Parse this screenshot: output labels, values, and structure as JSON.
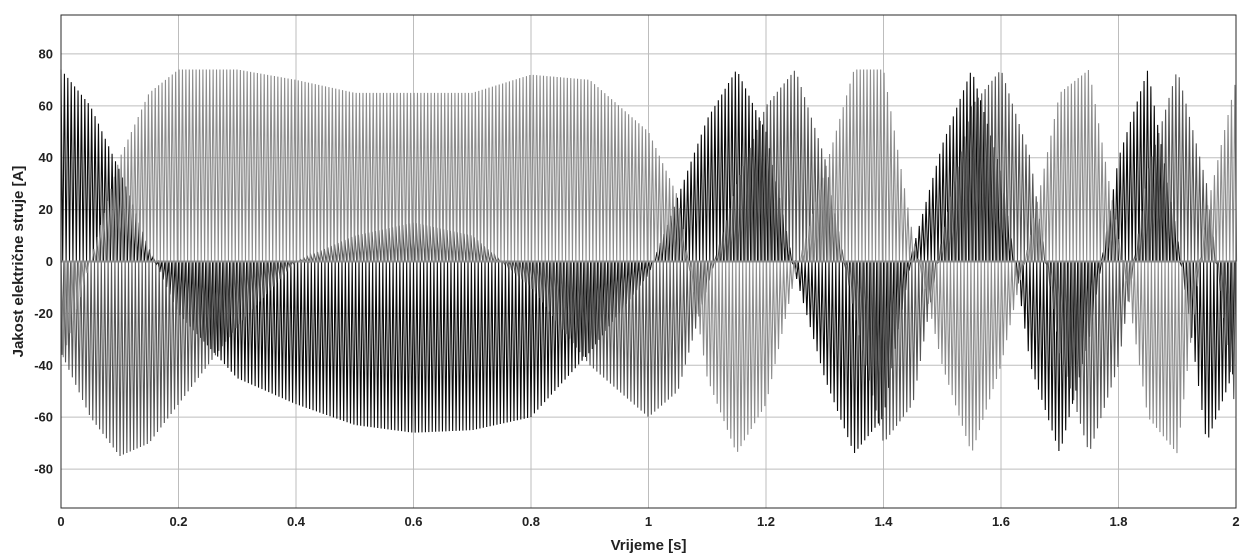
{
  "chart_data": {
    "type": "line",
    "title": "",
    "xlabel": "Vrijeme [s]",
    "ylabel": "Jakost električne struje [A]",
    "xlim": [
      0,
      2
    ],
    "ylim": [
      -95,
      95
    ],
    "x_ticks": [
      0,
      0.2,
      0.4,
      0.6,
      0.8,
      1,
      1.2,
      1.4,
      1.6,
      1.8,
      2
    ],
    "x_tick_labels": [
      "0",
      "0.2",
      "0.4",
      "0.6",
      "0.8",
      "1",
      "1.2",
      "1.4",
      "1.6",
      "1.8",
      "2"
    ],
    "y_ticks": [
      -80,
      -60,
      -40,
      -20,
      0,
      20,
      40,
      60,
      80
    ],
    "y_tick_labels": [
      "-80",
      "-60",
      "-40",
      "-20",
      "0",
      "20",
      "40",
      "60",
      "80"
    ],
    "grid": true,
    "legend": "none",
    "series": [
      {
        "color": "#0a0a0a",
        "x": [
          0,
          0.05,
          0.1,
          0.15,
          0.2,
          0.3,
          0.4,
          0.5,
          0.6,
          0.7,
          0.8,
          0.9,
          1.0,
          1.05,
          1.1,
          1.15,
          1.2,
          1.25,
          1.3,
          1.35,
          1.4,
          1.45,
          1.5,
          1.55,
          1.6,
          1.65,
          1.7,
          1.75,
          1.8,
          1.85,
          1.9,
          1.95,
          2.0
        ],
        "y": [
          74,
          60,
          35,
          5,
          -20,
          -45,
          -55,
          -63,
          -66,
          -65,
          -60,
          -35,
          -5,
          25,
          55,
          74,
          50,
          -5,
          -45,
          -74,
          -60,
          5,
          45,
          74,
          35,
          -40,
          -74,
          -30,
          40,
          74,
          10,
          -70,
          -40
        ]
      },
      {
        "color": "#555555",
        "x": [
          0,
          0.05,
          0.1,
          0.15,
          0.2,
          0.3,
          0.4,
          0.5,
          0.6,
          0.7,
          0.8,
          0.9,
          1.0,
          1.05,
          1.1,
          1.15,
          1.2,
          1.25,
          1.3,
          1.35,
          1.4,
          1.45,
          1.5,
          1.55,
          1.6,
          1.65,
          1.7,
          1.75,
          1.8,
          1.85,
          1.9,
          1.95,
          2.0
        ],
        "y": [
          -35,
          -60,
          -75,
          -70,
          -55,
          -25,
          0,
          10,
          15,
          10,
          -10,
          -40,
          -60,
          -50,
          -10,
          30,
          60,
          74,
          40,
          -20,
          -70,
          -55,
          10,
          60,
          74,
          40,
          -35,
          -74,
          -40,
          35,
          74,
          30,
          -60
        ]
      },
      {
        "color": "#8c8c8c",
        "x": [
          0,
          0.05,
          0.1,
          0.15,
          0.2,
          0.3,
          0.4,
          0.5,
          0.6,
          0.7,
          0.8,
          0.9,
          1.0,
          1.05,
          1.1,
          1.15,
          1.2,
          1.25,
          1.3,
          1.35,
          1.4,
          1.45,
          1.5,
          1.55,
          1.6,
          1.65,
          1.7,
          1.75,
          1.8,
          1.85,
          1.9,
          1.95,
          2.0
        ],
        "y": [
          -40,
          0,
          40,
          65,
          74,
          74,
          70,
          65,
          65,
          65,
          72,
          70,
          50,
          25,
          -45,
          -74,
          -55,
          -5,
          35,
          74,
          74,
          10,
          -40,
          -74,
          -40,
          10,
          65,
          74,
          10,
          -60,
          -74,
          20,
          70
        ]
      }
    ]
  }
}
